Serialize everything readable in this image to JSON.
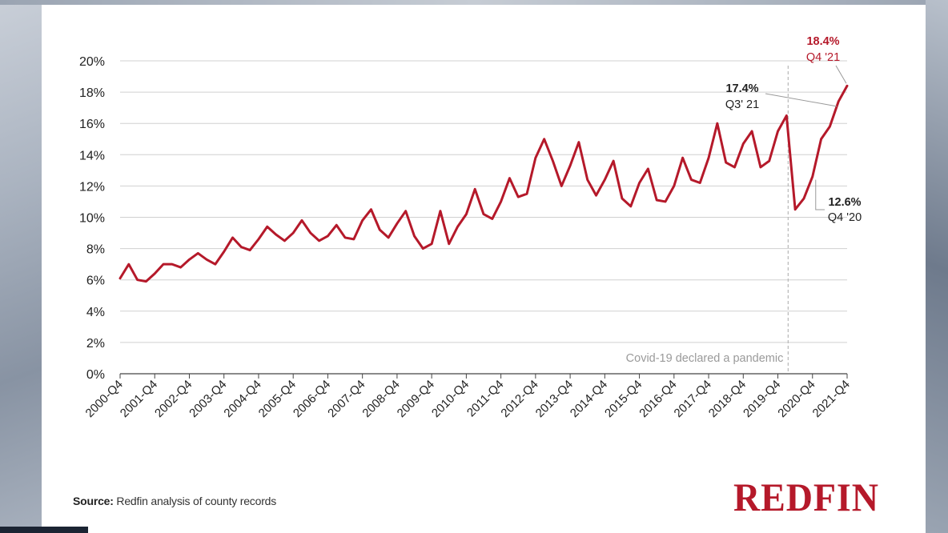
{
  "chart_data": {
    "type": "line",
    "title": "",
    "xlabel": "",
    "ylabel": "",
    "ylim": [
      0,
      20
    ],
    "y_ticks": [
      "0%",
      "2%",
      "4%",
      "6%",
      "8%",
      "10%",
      "12%",
      "14%",
      "16%",
      "18%",
      "20%"
    ],
    "x_tick_labels": [
      "2000-Q4",
      "2001-Q4",
      "2002-Q4",
      "2003-Q4",
      "2004-Q4",
      "2005-Q4",
      "2006-Q4",
      "2007-Q4",
      "2008-Q4",
      "2009-Q4",
      "2010-Q4",
      "2011-Q4",
      "2012-Q4",
      "2013-Q4",
      "2014-Q4",
      "2015-Q4",
      "2016-Q4",
      "2017-Q4",
      "2018-Q4",
      "2019-Q4",
      "2020-Q4",
      "2021-Q4"
    ],
    "grid": true,
    "line_color": "#b5192a",
    "series": [
      {
        "values": [
          6.1,
          7.0,
          6.0,
          5.9,
          6.4,
          7.0,
          7.0,
          6.8,
          7.3,
          7.7,
          7.3,
          7.0,
          7.8,
          8.7,
          8.1,
          7.9,
          8.6,
          9.4,
          8.9,
          8.5,
          9.0,
          9.8,
          9.0,
          8.5,
          8.8,
          9.5,
          8.7,
          8.6,
          9.8,
          10.5,
          9.2,
          8.7,
          9.6,
          10.4,
          8.8,
          8.0,
          8.3,
          10.4,
          8.3,
          9.4,
          10.2,
          11.8,
          10.2,
          9.9,
          11.0,
          12.5,
          11.3,
          11.5,
          13.8,
          15.0,
          13.6,
          12.0,
          13.3,
          14.8,
          12.4,
          11.4,
          12.4,
          13.6,
          11.2,
          10.7,
          12.2,
          13.1,
          11.1,
          11.0,
          12.0,
          13.8,
          12.4,
          12.2,
          13.8,
          16.0,
          13.5,
          13.2,
          14.7,
          15.5,
          13.2,
          13.6,
          15.5,
          16.5,
          10.5,
          11.2,
          12.6,
          15.0,
          15.8,
          17.4,
          18.4
        ]
      }
    ],
    "annotations": [
      {
        "value": "18.4%",
        "label": "Q4 '21",
        "color": "#b5192a"
      },
      {
        "value": "17.4%",
        "label": "Q3' 21",
        "color": "#222222"
      },
      {
        "value": "12.6%",
        "label": "Q4 '20",
        "color": "#222222"
      }
    ],
    "vline_label": "Covid-19 declared a pandemic"
  },
  "source": {
    "label": "Source:",
    "text": " Redfin analysis of county records"
  },
  "logo": "REDFIN"
}
